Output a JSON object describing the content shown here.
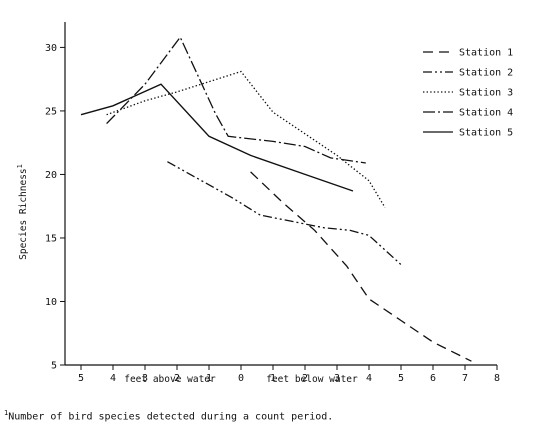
{
  "chart_data": {
    "type": "line",
    "ylabel": "Species Richness",
    "ylabel_superscript": "1",
    "xlabel_left": "feet above water",
    "xlabel_right": "feet below water",
    "ylim": [
      5,
      32
    ],
    "yticks": [
      5,
      10,
      15,
      20,
      25,
      30
    ],
    "xlim": [
      -5.5,
      8
    ],
    "xticks": [
      -5,
      -4,
      -3,
      -2,
      -1,
      0,
      1,
      2,
      3,
      4,
      5,
      6,
      7,
      8
    ],
    "xtick_labels": [
      "5",
      "4",
      "3",
      "2",
      "1",
      "0",
      "1",
      "2",
      "3",
      "4",
      "5",
      "6",
      "7",
      "8"
    ],
    "legend_position": "top-right",
    "grid": false,
    "series": [
      {
        "name": "Station 1",
        "style": "dashed",
        "x": [
          0.3,
          1.3,
          2.3,
          3.3,
          4,
          5,
          6,
          7.2
        ],
        "y": [
          20.2,
          17.8,
          15.6,
          12.8,
          10.2,
          8.5,
          6.8,
          5.3
        ]
      },
      {
        "name": "Station 2",
        "style": "dash-dot-dot",
        "x": [
          -2.3,
          -1.3,
          -0.3,
          0.6,
          1.6,
          2.6,
          3.4,
          4,
          5
        ],
        "y": [
          21,
          19.6,
          18.2,
          16.8,
          16.3,
          15.8,
          15.6,
          15.2,
          12.9
        ]
      },
      {
        "name": "Station 3",
        "style": "dotted",
        "x": [
          -4.2,
          -3,
          -2,
          -1,
          0,
          1,
          2,
          3,
          4,
          4.5
        ],
        "y": [
          24.7,
          25.8,
          26.5,
          27.3,
          28.1,
          24.9,
          23.2,
          21.5,
          19.5,
          17.4
        ]
      },
      {
        "name": "Station 4",
        "style": "dash-dot",
        "x": [
          -4.2,
          -3,
          -1.9,
          -0.8,
          -0.4,
          1,
          2,
          2.8,
          3.9
        ],
        "y": [
          24,
          27.1,
          30.8,
          24.8,
          23,
          22.6,
          22.2,
          21.3,
          20.9
        ]
      },
      {
        "name": "Station 5",
        "style": "solid",
        "x": [
          -5,
          -4,
          -2.5,
          -1,
          0.3,
          2,
          3.5
        ],
        "y": [
          24.7,
          25.4,
          27.1,
          23,
          21.5,
          20,
          18.7
        ]
      }
    ]
  },
  "footnote": {
    "marker": "1",
    "text": "Number of bird species detected during a count period."
  }
}
